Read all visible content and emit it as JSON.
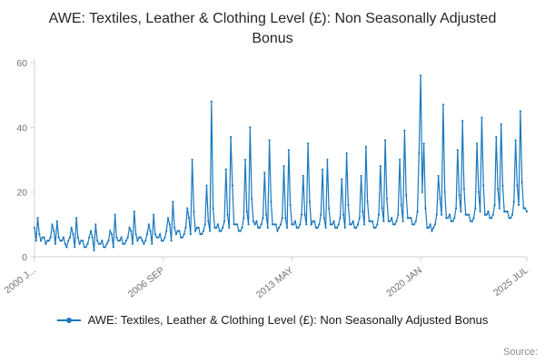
{
  "title": "AWE: Textiles, Leather & Clothing Level (£): Non Seasonally Adjusted Bonus",
  "legend": {
    "label": "AWE: Textiles, Leather & Clothing Level (£): Non Seasonally Adjusted Bonus"
  },
  "source_label": "Source:",
  "chart_data": {
    "type": "line",
    "title": "AWE: Textiles, Leather & Clothing Level (£): Non Seasonally Adjusted Bonus",
    "xlabel": "",
    "ylabel": "",
    "frequency": "monthly",
    "x_range": [
      "2000 JAN",
      "2025 JUL"
    ],
    "ylim": [
      0,
      60
    ],
    "yticks": [
      0,
      20,
      40,
      60
    ],
    "xticks": [
      {
        "index": 0,
        "label": "2000 J..."
      },
      {
        "index": 80,
        "label": "2006 SEP"
      },
      {
        "index": 160,
        "label": "2013 MAY"
      },
      {
        "index": 240,
        "label": "2020 JAN"
      },
      {
        "index": 306,
        "label": "2025 JUL"
      }
    ],
    "color": "#1878be",
    "axis_color": "#d0d0d0",
    "legend_position": "bottom",
    "grid": false,
    "values": [
      9,
      5,
      12,
      7,
      5,
      6,
      6,
      4,
      5,
      5,
      6,
      10,
      8,
      4,
      11,
      6,
      5,
      5,
      6,
      4,
      3,
      5,
      6,
      9,
      7,
      3,
      12,
      6,
      4,
      5,
      5,
      3,
      3,
      4,
      6,
      8,
      6,
      2,
      10,
      5,
      4,
      4,
      5,
      3,
      3,
      4,
      5,
      8,
      7,
      3,
      13,
      6,
      5,
      5,
      6,
      4,
      4,
      5,
      6,
      9,
      8,
      4,
      14,
      7,
      5,
      6,
      6,
      5,
      4,
      5,
      7,
      10,
      8,
      4,
      13,
      7,
      6,
      6,
      7,
      5,
      5,
      6,
      8,
      12,
      10,
      5,
      17,
      9,
      7,
      8,
      8,
      6,
      6,
      7,
      9,
      15,
      12,
      7,
      30,
      14,
      8,
      9,
      9,
      7,
      7,
      8,
      10,
      22,
      11,
      8,
      48,
      15,
      9,
      9,
      10,
      8,
      8,
      9,
      11,
      27,
      13,
      9,
      37,
      22,
      10,
      10,
      10,
      8,
      8,
      9,
      12,
      30,
      14,
      10,
      40,
      18,
      11,
      10,
      11,
      9,
      9,
      10,
      12,
      26,
      13,
      9,
      36,
      17,
      10,
      10,
      10,
      8,
      9,
      10,
      12,
      28,
      12,
      9,
      33,
      16,
      10,
      10,
      11,
      9,
      9,
      10,
      13,
      25,
      13,
      10,
      35,
      17,
      10,
      11,
      11,
      9,
      9,
      10,
      13,
      27,
      12,
      9,
      30,
      15,
      10,
      10,
      11,
      9,
      9,
      10,
      12,
      24,
      13,
      9,
      32,
      16,
      10,
      10,
      11,
      9,
      9,
      10,
      12,
      25,
      14,
      10,
      34,
      17,
      11,
      11,
      11,
      9,
      9,
      10,
      13,
      28,
      15,
      11,
      36,
      18,
      11,
      11,
      12,
      10,
      10,
      11,
      13,
      30,
      16,
      11,
      39,
      19,
      12,
      12,
      12,
      10,
      10,
      11,
      14,
      32,
      56,
      20,
      35,
      15,
      9,
      9,
      10,
      8,
      9,
      10,
      13,
      25,
      18,
      13,
      47,
      20,
      12,
      12,
      13,
      11,
      11,
      12,
      15,
      33,
      19,
      14,
      42,
      21,
      13,
      13,
      13,
      11,
      11,
      12,
      15,
      35,
      20,
      14,
      43,
      22,
      13,
      13,
      14,
      12,
      12,
      13,
      16,
      37,
      21,
      15,
      41,
      22,
      14,
      14,
      14,
      12,
      12,
      13,
      17,
      36,
      22,
      16,
      45,
      23,
      15,
      15,
      14
    ]
  }
}
